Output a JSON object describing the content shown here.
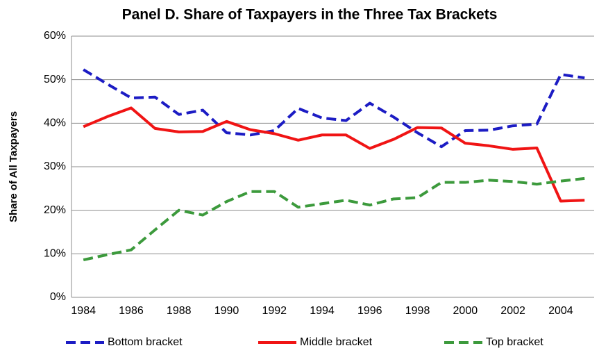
{
  "chart_data": {
    "type": "line",
    "title": "Panel D. Share of Taxpayers in the Three Tax Brackets",
    "y_label": "Share of All Taxpayers",
    "x": [
      1984,
      1985,
      1986,
      1987,
      1988,
      1989,
      1990,
      1991,
      1992,
      1993,
      1994,
      1995,
      1996,
      1997,
      1998,
      1999,
      2000,
      2001,
      2002,
      2003,
      2004,
      2005
    ],
    "xlim": [
      1983.5,
      2005.4
    ],
    "xticks": [
      1984,
      1986,
      1988,
      1990,
      1992,
      1994,
      1996,
      1998,
      2000,
      2002,
      2004
    ],
    "ylim": [
      0,
      60
    ],
    "yticks": [
      {
        "value": 0,
        "label": "0%"
      },
      {
        "value": 10,
        "label": "10%"
      },
      {
        "value": 20,
        "label": "20%"
      },
      {
        "value": 30,
        "label": "30%"
      },
      {
        "value": 40,
        "label": "40%"
      },
      {
        "value": 50,
        "label": "50%"
      },
      {
        "value": 60,
        "label": "60%"
      }
    ],
    "grid": true,
    "legend": "bottom",
    "series": [
      {
        "name": "Bottom bracket",
        "color": "#1c1cc4",
        "dash": "dash",
        "values": [
          52.3,
          49,
          45.8,
          46,
          42,
          43,
          37.8,
          37.3,
          38.3,
          43.4,
          41.2,
          40.6,
          44.6,
          41.4,
          37.8,
          34.6,
          38.3,
          38.4,
          39.4,
          39.8,
          51.2,
          50.4
        ]
      },
      {
        "name": "Middle bracket",
        "color": "#f01414",
        "dash": "solid",
        "values": [
          39.2,
          41.5,
          43.5,
          38.8,
          38,
          38.1,
          40.4,
          38.5,
          37.6,
          36.1,
          37.3,
          37.3,
          34.2,
          36.3,
          39,
          38.9,
          35.4,
          34.8,
          34,
          34.3,
          22.1,
          22.3
        ]
      },
      {
        "name": "Top bracket",
        "color": "#3c9a3c",
        "dash": "dash",
        "values": [
          8.6,
          9.8,
          10.9,
          15.5,
          20,
          18.9,
          22,
          24.3,
          24.3,
          20.7,
          21.5,
          22.3,
          21.2,
          22.6,
          22.9,
          26.4,
          26.4,
          26.9,
          26.6,
          26,
          26.7,
          27.3
        ]
      }
    ]
  }
}
